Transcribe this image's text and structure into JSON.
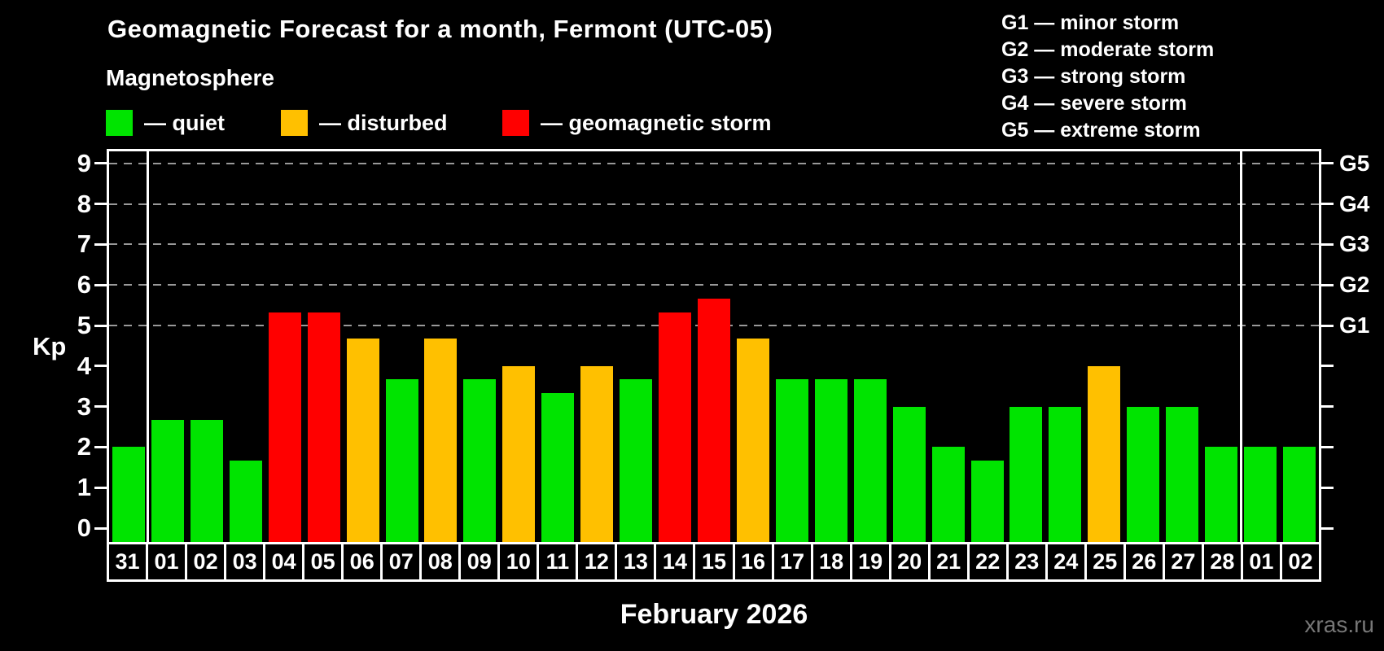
{
  "title": "Geomagnetic Forecast for a month, Fermont (UTC-05)",
  "subtitle": "Magnetosphere",
  "legend": {
    "items": [
      {
        "status": "quiet",
        "label": "— quiet"
      },
      {
        "status": "disturbed",
        "label": "— disturbed"
      },
      {
        "status": "storm",
        "label": "— geomagnetic storm"
      }
    ]
  },
  "g_legend": [
    "G1 — minor storm",
    "G2 — moderate storm",
    "G3 — strong storm",
    "G4 — severe storm",
    "G5 — extreme storm"
  ],
  "axes": {
    "kp_label": "Kp",
    "kp_ticks": [
      0,
      1,
      2,
      3,
      4,
      5,
      6,
      7,
      8,
      9
    ],
    "x_label": "February 2026"
  },
  "watermark": "xras.ru",
  "colors": {
    "quiet": "#00E400",
    "disturbed": "#FFC000",
    "storm": "#FF0000",
    "grid": "#999999",
    "axis": "#FFFFFF",
    "watermark": "#777777"
  },
  "chart_data": {
    "type": "bar",
    "title": "Geomagnetic Forecast for a month, Fermont (UTC-05)",
    "xlabel": "February 2026",
    "ylabel": "Kp",
    "ylim": [
      0,
      9
    ],
    "grid": "dashed horizontal at G-levels",
    "legend_position": "top-left",
    "categories": [
      "31",
      "01",
      "02",
      "03",
      "04",
      "05",
      "06",
      "07",
      "08",
      "09",
      "10",
      "11",
      "12",
      "13",
      "14",
      "15",
      "16",
      "17",
      "18",
      "19",
      "20",
      "21",
      "22",
      "23",
      "24",
      "25",
      "26",
      "27",
      "28",
      "01",
      "02"
    ],
    "values": [
      2.0,
      2.67,
      2.67,
      1.67,
      5.33,
      5.33,
      4.67,
      3.67,
      4.67,
      3.67,
      4.0,
      3.33,
      4.0,
      3.67,
      5.33,
      5.67,
      4.67,
      3.67,
      3.67,
      3.67,
      3.0,
      2.0,
      1.67,
      3.0,
      3.0,
      4.0,
      3.0,
      3.0,
      2.0,
      2.0,
      2.0
    ],
    "statuses": [
      "quiet",
      "quiet",
      "quiet",
      "quiet",
      "storm",
      "storm",
      "disturbed",
      "quiet",
      "disturbed",
      "quiet",
      "disturbed",
      "quiet",
      "disturbed",
      "quiet",
      "storm",
      "storm",
      "disturbed",
      "quiet",
      "quiet",
      "quiet",
      "quiet",
      "quiet",
      "quiet",
      "quiet",
      "quiet",
      "disturbed",
      "quiet",
      "quiet",
      "quiet",
      "quiet",
      "quiet"
    ],
    "gridlines_at_kp": [
      5,
      6,
      7,
      8,
      9
    ],
    "right_axis_labels": {
      "5": "G1",
      "6": "G2",
      "7": "G3",
      "8": "G4",
      "9": "G5"
    },
    "month_separators_after_index": [
      0,
      28
    ]
  }
}
